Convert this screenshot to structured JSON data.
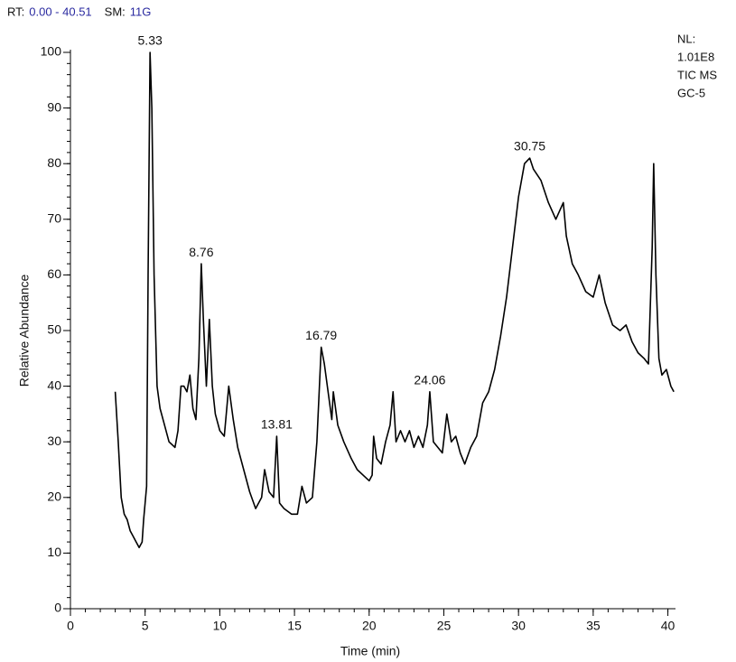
{
  "chart_data": {
    "type": "line",
    "header": [
      {
        "text": "RT:",
        "color": "#111111"
      },
      {
        "text": "0.00 - 40.51",
        "color": "#2a2aa0"
      },
      {
        "text": "SM:",
        "color": "#111111"
      },
      {
        "text": "11G",
        "color": "#2a2aa0"
      }
    ],
    "info": [
      "NL:",
      "1.01E8",
      "TIC  MS",
      "GC-5"
    ],
    "xlabel": "Time (min)",
    "ylabel": "Relative Abundance",
    "xlim": [
      0,
      40.51
    ],
    "ylim": [
      0,
      100
    ],
    "xticks": [
      0,
      5,
      10,
      15,
      20,
      25,
      30,
      35,
      40
    ],
    "yticks": [
      0,
      10,
      20,
      30,
      40,
      50,
      60,
      70,
      80,
      90,
      100
    ],
    "xminor": 1,
    "yminor": 2,
    "x": [
      3.0,
      3.2,
      3.4,
      3.6,
      3.8,
      4.0,
      4.2,
      4.4,
      4.6,
      4.8,
      4.9,
      5.0,
      5.1,
      5.2,
      5.33,
      5.45,
      5.6,
      5.8,
      6.0,
      6.3,
      6.6,
      7.0,
      7.2,
      7.4,
      7.6,
      7.8,
      8.0,
      8.2,
      8.4,
      8.6,
      8.76,
      8.9,
      9.1,
      9.3,
      9.5,
      9.7,
      10.0,
      10.3,
      10.6,
      10.9,
      11.2,
      11.6,
      12.0,
      12.4,
      12.8,
      13.0,
      13.3,
      13.6,
      13.81,
      14.0,
      14.3,
      14.8,
      15.2,
      15.5,
      15.8,
      16.2,
      16.5,
      16.79,
      17.0,
      17.3,
      17.5,
      17.6,
      17.9,
      18.3,
      18.8,
      19.2,
      19.6,
      20.0,
      20.2,
      20.3,
      20.5,
      20.8,
      21.1,
      21.4,
      21.6,
      21.8,
      22.1,
      22.4,
      22.7,
      23.0,
      23.3,
      23.6,
      23.9,
      24.06,
      24.3,
      24.6,
      24.9,
      25.2,
      25.5,
      25.8,
      26.1,
      26.4,
      26.8,
      27.2,
      27.6,
      28.0,
      28.4,
      28.8,
      29.2,
      29.6,
      30.0,
      30.4,
      30.75,
      31.0,
      31.5,
      32.0,
      32.5,
      33.0,
      33.2,
      33.6,
      34.0,
      34.5,
      35.0,
      35.4,
      35.8,
      36.3,
      36.8,
      37.2,
      37.6,
      38.0,
      38.4,
      38.7,
      38.95,
      39.05,
      39.2,
      39.4,
      39.6,
      39.9,
      40.2,
      40.4
    ],
    "series": [
      {
        "color": "#000000",
        "values": [
          39,
          30,
          20,
          17,
          16,
          14,
          13,
          12,
          11,
          12,
          16,
          19,
          22,
          60,
          100,
          90,
          60,
          40,
          36,
          33,
          30,
          29,
          32,
          40,
          40,
          39,
          42,
          36,
          34,
          45,
          62,
          52,
          40,
          52,
          40,
          35,
          32,
          31,
          40,
          34,
          29,
          25,
          21,
          18,
          20,
          25,
          21,
          20,
          31,
          19,
          18,
          17,
          17,
          22,
          19,
          20,
          30,
          47,
          44,
          38,
          34,
          39,
          33,
          30,
          27,
          25,
          24,
          23,
          24,
          31,
          27,
          26,
          30,
          33,
          39,
          30,
          32,
          30,
          32,
          29,
          31,
          29,
          33,
          39,
          30,
          29,
          28,
          35,
          30,
          31,
          28,
          26,
          29,
          31,
          37,
          39,
          43,
          49,
          56,
          65,
          74,
          80,
          81,
          79,
          77,
          73,
          70,
          73,
          67,
          62,
          60,
          57,
          56,
          60,
          55,
          51,
          50,
          51,
          48,
          46,
          45,
          44,
          65,
          80,
          60,
          45,
          42,
          43,
          40,
          39
        ]
      }
    ],
    "annotations": [
      {
        "text": "5.33",
        "x": 5.33,
        "y": 100
      },
      {
        "text": "8.76",
        "x": 8.76,
        "y": 62
      },
      {
        "text": "13.81",
        "x": 13.81,
        "y": 31
      },
      {
        "text": "16.79",
        "x": 16.79,
        "y": 47
      },
      {
        "text": "24.06",
        "x": 24.06,
        "y": 39
      },
      {
        "text": "30.75",
        "x": 30.75,
        "y": 81
      }
    ]
  }
}
